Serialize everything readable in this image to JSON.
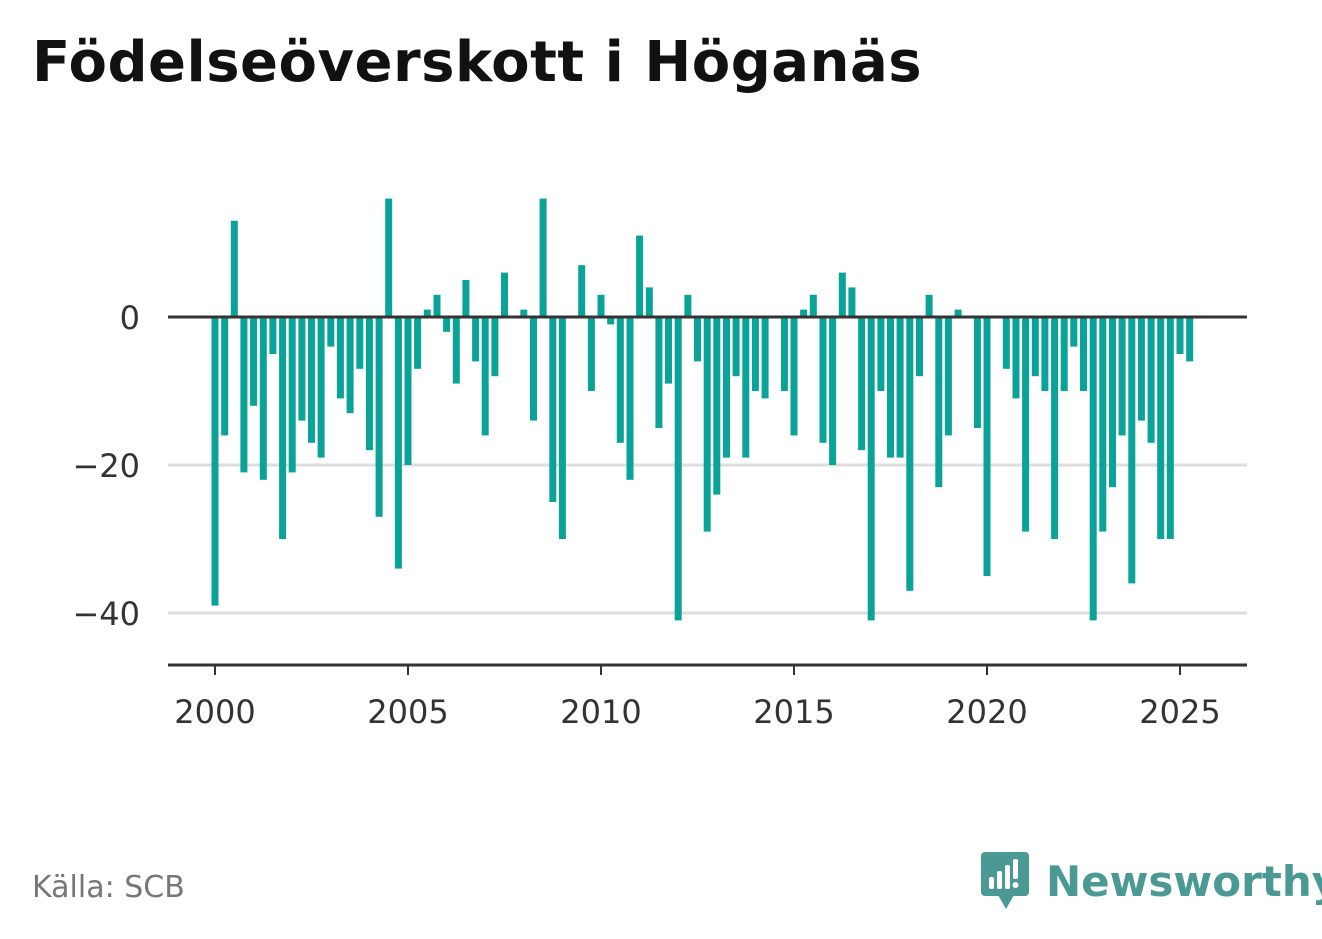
{
  "title": "Födelseöverskott i Höganäs",
  "source": "Källa: SCB",
  "brand": {
    "name": "Newsworthy",
    "icon": "newsworthy-logo-icon",
    "color": "#4a9995"
  },
  "colors": {
    "bar": "#0aa398",
    "grid": "#dddddd",
    "axis": "#333333"
  },
  "chart_data": {
    "type": "bar",
    "xlabel": "",
    "ylabel": "",
    "ylim": [
      -47,
      18
    ],
    "xlim": [
      1999.5,
      2026.8
    ],
    "yticks": [
      0,
      -20,
      -40
    ],
    "ytick_labels": [
      "0",
      "−20",
      "−40"
    ],
    "xticks": [
      2000,
      2005,
      2010,
      2015,
      2020,
      2025
    ],
    "xtick_labels": [
      "2000",
      "2005",
      "2010",
      "2015",
      "2020",
      "2025"
    ],
    "grid": "horizontal",
    "frequency": "monthly-quarters",
    "x": [
      2000.0,
      2000.25,
      2000.5,
      2000.75,
      2001.0,
      2001.25,
      2001.5,
      2001.75,
      2002.0,
      2002.25,
      2002.5,
      2002.75,
      2003.0,
      2003.25,
      2003.5,
      2003.75,
      2004.0,
      2004.25,
      2004.5,
      2004.75,
      2005.0,
      2005.25,
      2005.5,
      2005.75,
      2006.0,
      2006.25,
      2006.5,
      2006.75,
      2007.0,
      2007.25,
      2007.5,
      2007.75,
      2008.0,
      2008.25,
      2008.5,
      2008.75,
      2009.0,
      2009.25,
      2009.5,
      2009.75,
      2010.0,
      2010.25,
      2010.5,
      2010.75,
      2011.0,
      2011.25,
      2011.5,
      2011.75,
      2012.0,
      2012.25,
      2012.5,
      2012.75,
      2013.0,
      2013.25,
      2013.5,
      2013.75,
      2014.0,
      2014.25,
      2014.5,
      2014.75,
      2015.0,
      2015.25,
      2015.5,
      2015.75,
      2016.0,
      2016.25,
      2016.5,
      2016.75,
      2017.0,
      2017.25,
      2017.5,
      2017.75,
      2018.0,
      2018.25,
      2018.5,
      2018.75,
      2019.0,
      2019.25,
      2019.5,
      2019.75,
      2020.0,
      2020.25,
      2020.5,
      2020.75,
      2021.0,
      2021.25,
      2021.5,
      2021.75,
      2022.0,
      2022.25,
      2022.5,
      2022.75,
      2023.0,
      2023.25,
      2023.5,
      2023.75,
      2024.0,
      2024.25,
      2024.5,
      2024.75,
      2025.0,
      2025.25
    ],
    "values": [
      -39,
      -16,
      13,
      -21,
      -12,
      -22,
      -5,
      -30,
      -21,
      -14,
      -17,
      -19,
      -4,
      -11,
      -13,
      -7,
      -18,
      -27,
      16,
      -34,
      -20,
      -7,
      1,
      3,
      -2,
      -9,
      5,
      -6,
      -16,
      -8,
      6,
      0,
      1,
      -14,
      16,
      -25,
      -30,
      0,
      7,
      -10,
      3,
      -1,
      -17,
      -22,
      11,
      4,
      -15,
      -9,
      -41,
      3,
      -6,
      -29,
      -24,
      -19,
      -8,
      -19,
      -10,
      -11,
      0,
      -10,
      -16,
      1,
      3,
      -17,
      -20,
      6,
      4,
      -18,
      -41,
      -10,
      -19,
      -19,
      -37,
      -8,
      3,
      -23,
      -16,
      1,
      0,
      -15,
      -35,
      0,
      -7,
      -11,
      -29,
      -8,
      -10,
      -30,
      -10,
      -4,
      -10,
      -41,
      -29,
      -23,
      -16,
      -36,
      -14,
      -17,
      -30,
      -30,
      -5,
      -6
    ]
  }
}
